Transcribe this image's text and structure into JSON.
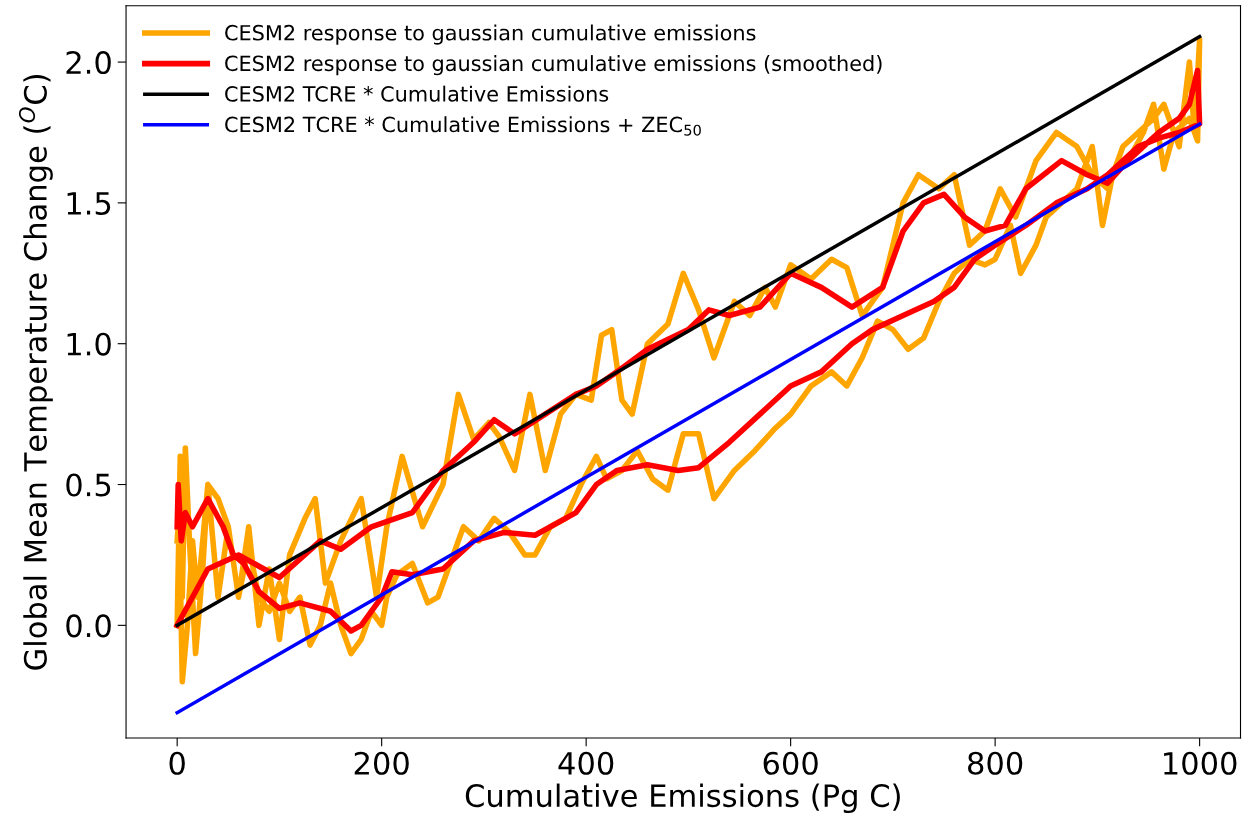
{
  "chart_data": {
    "type": "line",
    "xlabel": "Cumulative Emissions (Pg C)",
    "ylabel": "Global Mean Temperature Change ($^{O}$C)",
    "xlim": [
      -50,
      1040
    ],
    "ylim": [
      -0.4,
      2.2
    ],
    "xticks": [
      0,
      200,
      400,
      600,
      800,
      1000
    ],
    "yticks": [
      {
        "value": 0.0,
        "label": "0.0"
      },
      {
        "value": 0.5,
        "label": "0.5"
      },
      {
        "value": 1.0,
        "label": "1.0"
      },
      {
        "value": 1.5,
        "label": "1.5"
      },
      {
        "value": 2.0,
        "label": "2.0"
      }
    ],
    "legend": "top left",
    "grid": false,
    "marker": "none",
    "line_style": "solid",
    "series": [
      {
        "name": "CESM2 response to gaussian cumulative emissions",
        "color": "#ffa500",
        "x": [
          0,
          3,
          5,
          8,
          12,
          18,
          25,
          30,
          40,
          50,
          60,
          70,
          80,
          90,
          100,
          110,
          125,
          135,
          145,
          160,
          180,
          195,
          205,
          220,
          240,
          260,
          275,
          290,
          305,
          315,
          330,
          345,
          360,
          375,
          390,
          405,
          415,
          425,
          435,
          445,
          460,
          480,
          495,
          510,
          525,
          545,
          560,
          575,
          585,
          600,
          620,
          640,
          655,
          670,
          690,
          710,
          725,
          745,
          760,
          775,
          790,
          805,
          820,
          840,
          860,
          880,
          895,
          910,
          925,
          940,
          955,
          965,
          980,
          990,
          995,
          1000,
          998,
          990,
          975,
          965,
          955,
          945,
          930,
          915,
          905,
          895,
          880,
          865,
          850,
          840,
          825,
          815,
          800,
          790,
          775,
          760,
          745,
          730,
          715,
          700,
          685,
          670,
          655,
          640,
          620,
          600,
          585,
          565,
          545,
          525,
          510,
          495,
          480,
          465,
          450,
          435,
          420,
          410,
          395,
          380,
          365,
          350,
          340,
          325,
          310,
          295,
          280,
          270,
          255,
          245,
          230,
          215,
          205,
          200,
          190,
          180,
          170,
          160,
          150,
          140,
          130,
          120,
          110,
          100,
          90,
          80,
          70,
          60,
          50,
          40,
          30,
          20,
          15,
          10,
          5,
          2,
          0
        ],
        "values": [
          0.0,
          0.6,
          0.1,
          0.63,
          0.3,
          -0.1,
          0.2,
          0.5,
          0.1,
          0.35,
          0.1,
          0.35,
          0.0,
          0.2,
          -0.05,
          0.25,
          0.38,
          0.45,
          0.15,
          0.3,
          0.45,
          0.1,
          0.35,
          0.6,
          0.35,
          0.5,
          0.82,
          0.66,
          0.72,
          0.67,
          0.55,
          0.82,
          0.55,
          0.75,
          0.82,
          0.8,
          1.03,
          1.05,
          0.8,
          0.75,
          1.0,
          1.07,
          1.25,
          1.12,
          0.95,
          1.15,
          1.1,
          1.2,
          1.13,
          1.28,
          1.23,
          1.3,
          1.27,
          1.1,
          1.2,
          1.5,
          1.6,
          1.55,
          1.6,
          1.35,
          1.4,
          1.55,
          1.45,
          1.65,
          1.75,
          1.7,
          1.6,
          1.55,
          1.7,
          1.75,
          1.8,
          1.85,
          1.7,
          2.0,
          1.75,
          2.08,
          1.72,
          1.8,
          1.75,
          1.62,
          1.85,
          1.75,
          1.65,
          1.6,
          1.42,
          1.7,
          1.55,
          1.5,
          1.45,
          1.35,
          1.25,
          1.42,
          1.3,
          1.28,
          1.3,
          1.25,
          1.15,
          1.02,
          0.98,
          1.05,
          1.08,
          0.95,
          0.85,
          0.9,
          0.85,
          0.75,
          0.7,
          0.62,
          0.55,
          0.45,
          0.68,
          0.68,
          0.48,
          0.52,
          0.62,
          0.55,
          0.52,
          0.6,
          0.5,
          0.38,
          0.35,
          0.25,
          0.25,
          0.33,
          0.38,
          0.3,
          0.35,
          0.25,
          0.1,
          0.08,
          0.22,
          0.18,
          0.1,
          0.0,
          0.05,
          -0.05,
          -0.1,
          0.0,
          0.15,
          0.0,
          -0.07,
          0.1,
          0.05,
          0.15,
          0.05,
          0.1,
          0.28,
          0.1,
          0.35,
          0.45,
          0.5,
          0.1,
          0.3,
          0.0,
          -0.2,
          0.4,
          0.3
        ]
      },
      {
        "name": "CESM2 response to gaussian cumulative emissions (smoothed)",
        "color": "#ff0000",
        "x": [
          0,
          30,
          60,
          100,
          140,
          160,
          190,
          230,
          260,
          290,
          310,
          330,
          360,
          390,
          410,
          430,
          460,
          500,
          520,
          540,
          570,
          600,
          630,
          660,
          690,
          710,
          730,
          750,
          770,
          790,
          810,
          830,
          865,
          890,
          910,
          930,
          960,
          980,
          990,
          998,
          1000,
          980,
          960,
          940,
          910,
          890,
          860,
          830,
          800,
          780,
          760,
          740,
          710,
          680,
          660,
          630,
          600,
          570,
          540,
          510,
          490,
          460,
          430,
          410,
          390,
          350,
          320,
          290,
          260,
          230,
          210,
          200,
          180,
          170,
          150,
          120,
          100,
          80,
          65,
          55,
          45,
          30,
          15,
          8,
          4,
          1,
          0
        ],
        "values": [
          0.0,
          0.2,
          0.25,
          0.17,
          0.3,
          0.27,
          0.35,
          0.4,
          0.55,
          0.65,
          0.73,
          0.68,
          0.75,
          0.82,
          0.85,
          0.9,
          0.98,
          1.05,
          1.12,
          1.1,
          1.13,
          1.25,
          1.2,
          1.13,
          1.2,
          1.4,
          1.5,
          1.53,
          1.45,
          1.4,
          1.42,
          1.55,
          1.65,
          1.6,
          1.57,
          1.65,
          1.75,
          1.8,
          1.85,
          1.97,
          1.78,
          1.75,
          1.73,
          1.7,
          1.6,
          1.55,
          1.5,
          1.42,
          1.35,
          1.3,
          1.2,
          1.15,
          1.1,
          1.05,
          1.0,
          0.9,
          0.85,
          0.75,
          0.65,
          0.56,
          0.55,
          0.57,
          0.55,
          0.5,
          0.4,
          0.32,
          0.33,
          0.3,
          0.2,
          0.18,
          0.19,
          0.1,
          0.0,
          -0.02,
          0.05,
          0.08,
          0.06,
          0.12,
          0.22,
          0.25,
          0.35,
          0.45,
          0.35,
          0.4,
          0.3,
          0.5,
          0.35
        ]
      },
      {
        "name": "CESM2 TCRE * Cumulative Emissions",
        "color": "#000000",
        "x": [
          0,
          1000
        ],
        "values": [
          0.0,
          2.09
        ]
      },
      {
        "name": "CESM2 TCRE * Cumulative Emissions + ZEC$_{50}$",
        "color": "#0000ff",
        "x": [
          0,
          1000
        ],
        "values": [
          -0.31,
          1.78
        ]
      }
    ]
  }
}
